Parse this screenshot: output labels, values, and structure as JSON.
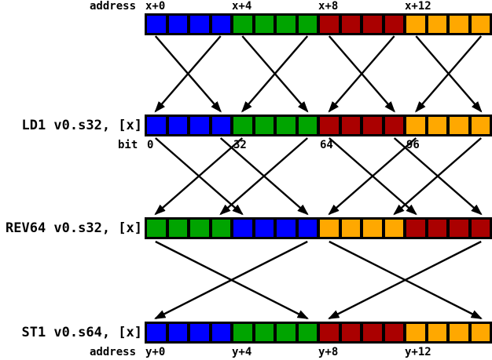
{
  "colors": {
    "blue": "#0000ff",
    "green": "#00a400",
    "dark_red": "#aa0000",
    "orange": "#ffa800",
    "arrow": "#000000",
    "background": "#ffffff"
  },
  "rows": {
    "memory_in": {
      "address_prefix": "address",
      "address_ticks": [
        "x+0",
        "x+4",
        "x+8",
        "x+12"
      ],
      "word_colors": [
        "blue",
        "green",
        "dark_red",
        "orange"
      ],
      "cells_per_word": 4
    },
    "ld1": {
      "instruction": "LD1 v0.s32, [x]",
      "bit_prefix": "bit",
      "bit_ticks": [
        "0",
        "32",
        "64",
        "96"
      ],
      "word_colors": [
        "blue",
        "green",
        "dark_red",
        "orange"
      ]
    },
    "rev64": {
      "instruction": "REV64 v0.s32, [x]",
      "word_colors": [
        "green",
        "blue",
        "orange",
        "dark_red"
      ]
    },
    "st1": {
      "instruction": "ST1 v0.s64, [x]",
      "address_prefix": "address",
      "address_ticks": [
        "y+0",
        "y+4",
        "y+8",
        "y+12"
      ],
      "word_colors": [
        "blue",
        "green",
        "dark_red",
        "orange"
      ]
    }
  },
  "arrows": {
    "load_stage": {
      "description": "byte swap within each 32-bit word",
      "pairs": [
        [
          0,
          3
        ],
        [
          3,
          0
        ],
        [
          4,
          7
        ],
        [
          7,
          4
        ],
        [
          8,
          11
        ],
        [
          11,
          8
        ],
        [
          12,
          15
        ],
        [
          15,
          12
        ]
      ]
    },
    "rev64_stage": {
      "description": "swap 32-bit words within each 64-bit lane",
      "pairs": [
        [
          0,
          4
        ],
        [
          3,
          7
        ],
        [
          4,
          0
        ],
        [
          7,
          3
        ],
        [
          8,
          12
        ],
        [
          11,
          15
        ],
        [
          12,
          8
        ],
        [
          15,
          11
        ]
      ]
    },
    "store_stage": {
      "description": "swap 32-bit words within each 64-bit lane",
      "pairs": [
        [
          0,
          7
        ],
        [
          7,
          0
        ],
        [
          8,
          15
        ],
        [
          15,
          8
        ]
      ]
    }
  }
}
